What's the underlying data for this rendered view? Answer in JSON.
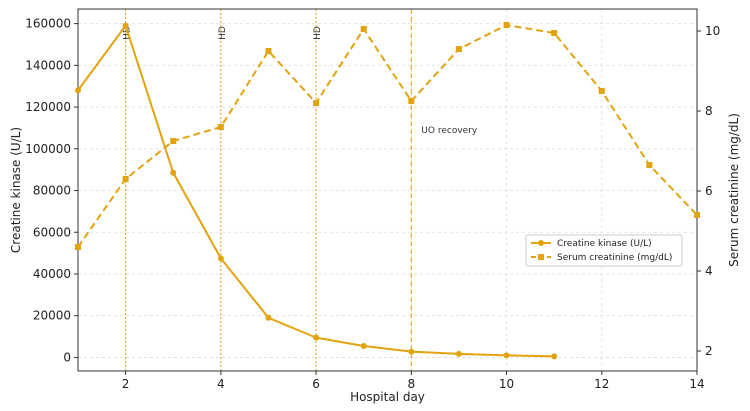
{
  "chart_data": {
    "type": "line",
    "xlabel": "Hospital day",
    "ylabel_left": "Creatine kinase (U/L)",
    "ylabel_right": "Serum creatinine (mg/dL)",
    "xlim": [
      1,
      14
    ],
    "ylim_left": [
      -6500,
      167000
    ],
    "ylim_right": [
      1.5,
      10.55
    ],
    "x_ticks": [
      2,
      4,
      6,
      8,
      10,
      12,
      14
    ],
    "y_ticks_left": [
      0,
      20000,
      40000,
      60000,
      80000,
      100000,
      120000,
      140000,
      160000
    ],
    "y_ticks_right": [
      2,
      4,
      6,
      8,
      10
    ],
    "grid": true,
    "legend_position": "center-right",
    "series": [
      {
        "name": "Creatine kinase (U/L)",
        "axis": "left",
        "style": "solid",
        "marker": "circle",
        "color": "#E2A30F",
        "x": [
          1,
          2,
          3,
          4,
          5,
          6,
          7,
          8,
          9,
          10,
          11
        ],
        "values": [
          128000,
          159000,
          88500,
          47500,
          19000,
          9500,
          5500,
          2800,
          1700,
          1000,
          500
        ]
      },
      {
        "name": "Serum creatinine (mg/dL)",
        "axis": "right",
        "style": "dashed",
        "marker": "square",
        "color": "#E2A30F",
        "x": [
          1,
          2,
          3,
          4,
          5,
          6,
          7,
          8,
          9,
          10,
          11,
          12,
          13,
          14
        ],
        "values": [
          4.6,
          6.3,
          7.25,
          7.6,
          9.5,
          8.2,
          10.05,
          8.25,
          9.55,
          10.15,
          9.95,
          8.5,
          6.65,
          5.4
        ]
      }
    ],
    "vlines": [
      {
        "x": 2,
        "label": "HD",
        "style": "dotted"
      },
      {
        "x": 4,
        "label": "HD",
        "style": "dotted"
      },
      {
        "x": 6,
        "label": "HD",
        "style": "dotted"
      },
      {
        "x": 8,
        "label": "UO recovery",
        "style": "dashed"
      }
    ]
  }
}
